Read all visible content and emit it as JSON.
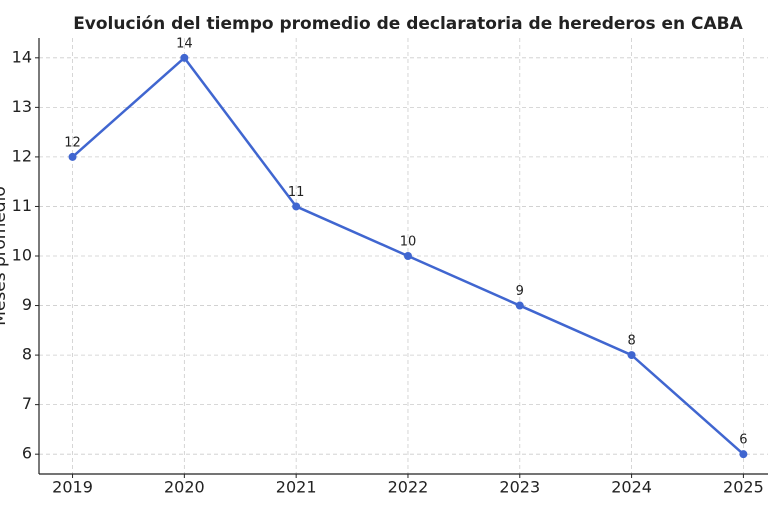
{
  "chart_data": {
    "type": "line",
    "title": "Evolución del tiempo promedio de declaratoria de herederos en CABA",
    "y_label": "Meses promedio",
    "x": [
      2019,
      2020,
      2021,
      2022,
      2023,
      2024,
      2025
    ],
    "series": [
      {
        "name": "Meses promedio",
        "color": "#4066d0",
        "values": [
          12,
          14,
          11,
          10,
          9,
          8,
          6
        ]
      }
    ],
    "xlim": [
      2018.7,
      2025.22
    ],
    "xticks": [
      2019,
      2020,
      2021,
      2022,
      2023,
      2024,
      2025
    ],
    "ylim": [
      5.6,
      14.4
    ],
    "yticks": [
      6,
      7,
      8,
      9,
      10,
      11,
      12,
      13,
      14
    ],
    "grid": true
  }
}
